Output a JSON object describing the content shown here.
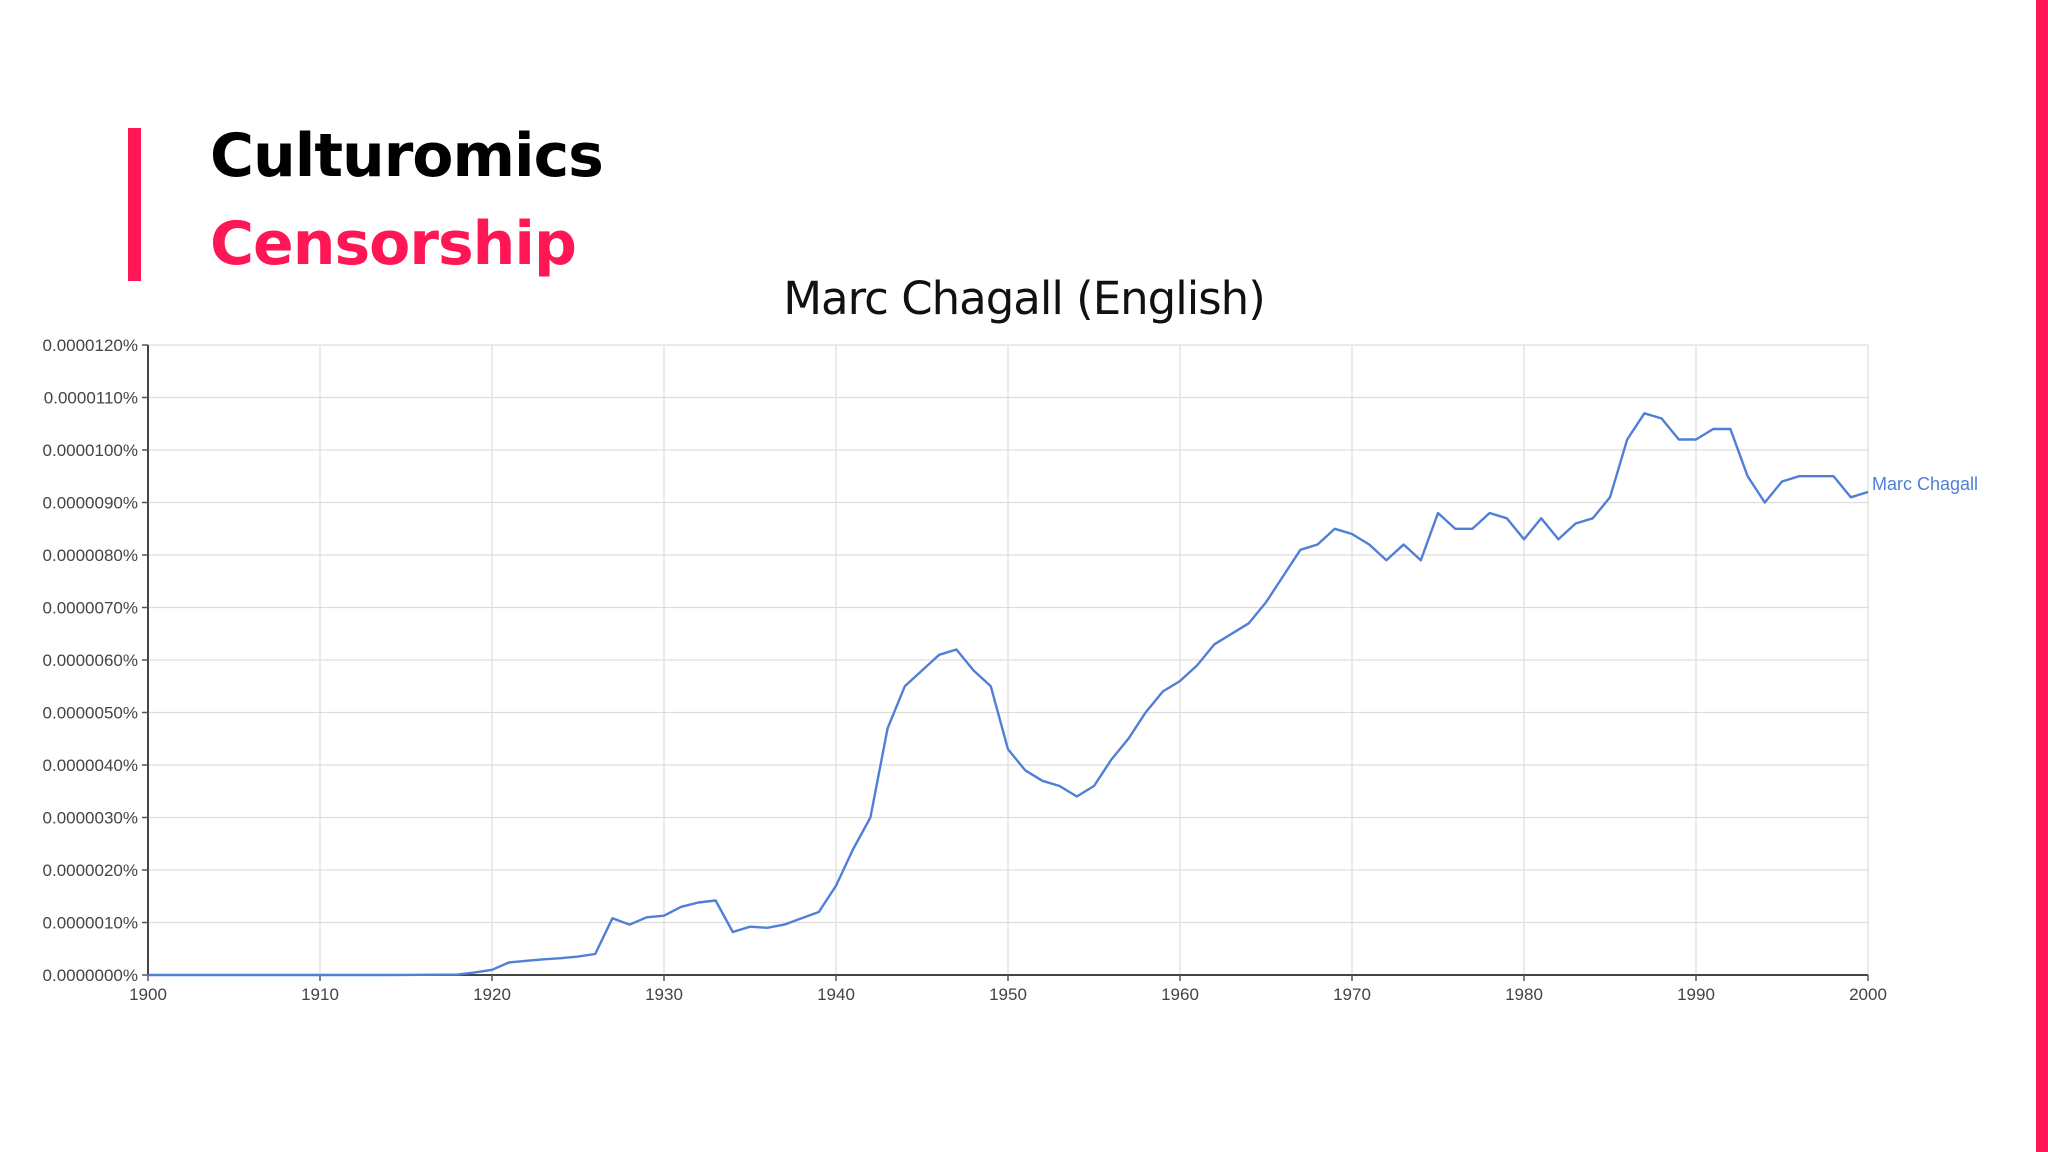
{
  "header": {
    "title": "Culturomics",
    "subtitle": "Censorship"
  },
  "colors": {
    "accent": "#ff1654",
    "series": "#4f7fd6",
    "grid": "#dddddd"
  },
  "chart_data": {
    "type": "line",
    "title": "Marc Chagall (English)",
    "xlabel": "",
    "ylabel": "",
    "xlim": [
      1900,
      2000
    ],
    "ylim": [
      0,
      1.2e-05
    ],
    "y_unit": "%",
    "grid": true,
    "legend": "end-of-line label (right)",
    "x_ticks": [
      1900,
      1910,
      1920,
      1930,
      1940,
      1950,
      1960,
      1970,
      1980,
      1990,
      2000
    ],
    "y_ticks": [
      "0.0000000%",
      "0.0000010%",
      "0.0000020%",
      "0.0000030%",
      "0.0000040%",
      "0.0000050%",
      "0.0000060%",
      "0.0000070%",
      "0.0000080%",
      "0.0000090%",
      "0.0000100%",
      "0.0000110%",
      "0.0000120%"
    ],
    "series": [
      {
        "name": "Marc Chagall",
        "x": [
          1900,
          1901,
          1902,
          1903,
          1904,
          1905,
          1906,
          1907,
          1908,
          1909,
          1910,
          1911,
          1912,
          1913,
          1914,
          1915,
          1916,
          1917,
          1918,
          1919,
          1920,
          1921,
          1922,
          1923,
          1924,
          1925,
          1926,
          1927,
          1928,
          1929,
          1930,
          1931,
          1932,
          1933,
          1934,
          1935,
          1936,
          1937,
          1938,
          1939,
          1940,
          1941,
          1942,
          1943,
          1944,
          1945,
          1946,
          1947,
          1948,
          1949,
          1950,
          1951,
          1952,
          1953,
          1954,
          1955,
          1956,
          1957,
          1958,
          1959,
          1960,
          1961,
          1962,
          1963,
          1964,
          1965,
          1966,
          1967,
          1968,
          1969,
          1970,
          1971,
          1972,
          1973,
          1974,
          1975,
          1976,
          1977,
          1978,
          1979,
          1980,
          1981,
          1982,
          1983,
          1984,
          1985,
          1986,
          1987,
          1988,
          1989,
          1990,
          1991,
          1992,
          1993,
          1994,
          1995,
          1996,
          1997,
          1998,
          1999,
          2000
        ],
        "y": [
          0,
          0,
          0,
          0,
          0,
          0,
          0,
          0,
          0,
          0,
          0,
          0,
          0,
          0,
          0,
          2e-09,
          4e-09,
          6e-09,
          8e-09,
          5e-08,
          1e-07,
          2.4e-07,
          2.7e-07,
          3e-07,
          3.2e-07,
          3.5e-07,
          4e-07,
          1.08e-06,
          9.6e-07,
          1.1e-06,
          1.13e-06,
          1.3e-06,
          1.38e-06,
          1.42e-06,
          8.2e-07,
          9.2e-07,
          9e-07,
          9.6e-07,
          1.08e-06,
          1.2e-06,
          1.7e-06,
          2.4e-06,
          3e-06,
          4.7e-06,
          5.5e-06,
          5.8e-06,
          6.1e-06,
          6.2e-06,
          5.8e-06,
          5.5e-06,
          4.3e-06,
          3.9e-06,
          3.7e-06,
          3.6e-06,
          3.4e-06,
          3.6e-06,
          4.1e-06,
          4.5e-06,
          5e-06,
          5.4e-06,
          5.6e-06,
          5.9e-06,
          6.3e-06,
          6.5e-06,
          6.7e-06,
          7.1e-06,
          7.6e-06,
          8.1e-06,
          8.2e-06,
          8.5e-06,
          8.4e-06,
          8.2e-06,
          7.9e-06,
          8.2e-06,
          7.9e-06,
          8.8e-06,
          8.5e-06,
          8.5e-06,
          8.8e-06,
          8.7e-06,
          8.3e-06,
          8.7e-06,
          8.3e-06,
          8.6e-06,
          8.7e-06,
          9.1e-06,
          1.02e-05,
          1.07e-05,
          1.06e-05,
          1.02e-05,
          1.02e-05,
          1.04e-05,
          1.04e-05,
          9.5e-06,
          9e-06,
          9.4e-06,
          9.5e-06,
          9.5e-06,
          9.5e-06,
          9.1e-06,
          9.2e-06
        ]
      }
    ]
  }
}
